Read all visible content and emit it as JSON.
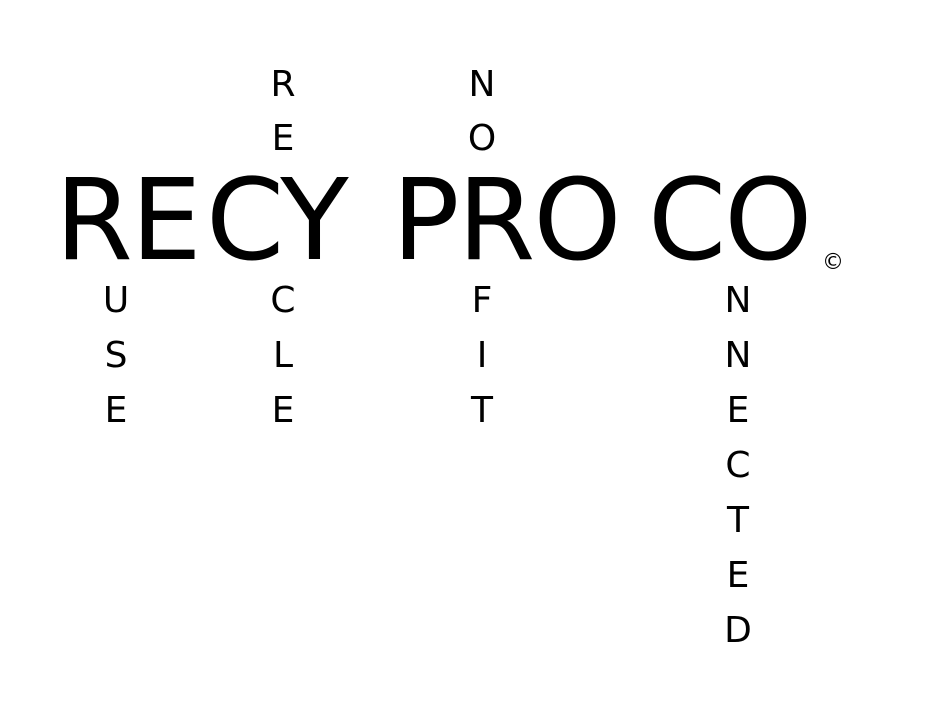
{
  "logo": {
    "words": [
      "RE",
      "CY",
      "PRO",
      "CO"
    ],
    "copyright_mark": "©",
    "acrostic": {
      "re": {
        "below": [
          "U",
          "S",
          "E"
        ]
      },
      "cy": {
        "above": [
          "R",
          "E"
        ],
        "below": [
          "C",
          "L",
          "E"
        ]
      },
      "pro": {
        "above": [
          "N",
          "O"
        ],
        "below": [
          "F",
          "I",
          "T"
        ]
      },
      "co": {
        "below": [
          "N",
          "N",
          "E",
          "C",
          "T",
          "E",
          "D"
        ]
      }
    },
    "text_color": "#000000",
    "background_color": "#ffffff"
  }
}
